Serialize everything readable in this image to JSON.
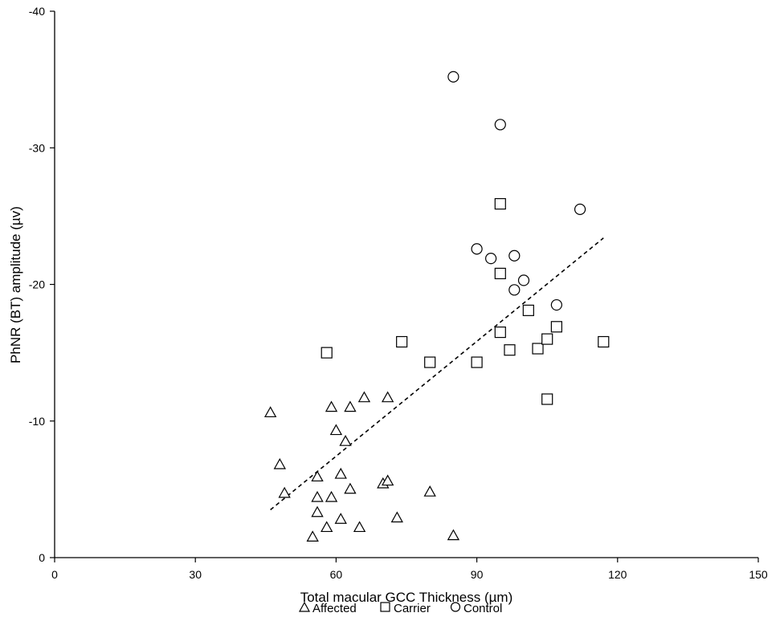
{
  "chart_data": {
    "type": "scatter",
    "xlabel": "Total macular GCC Thickness (µm)",
    "ylabel": "PhNR (BT) amplitude (µv)",
    "xlim": [
      0,
      150
    ],
    "ylim": [
      0,
      -40
    ],
    "y_axis_reversed": true,
    "x_ticks": [
      0,
      30,
      60,
      90,
      120,
      150
    ],
    "y_ticks": [
      0,
      -10,
      -20,
      -30,
      -40
    ],
    "grid": false,
    "legend_position": "bottom",
    "series": [
      {
        "name": "Affected",
        "marker": "triangle",
        "points": [
          [
            46,
            -10.6
          ],
          [
            48,
            -6.8
          ],
          [
            49,
            -4.7
          ],
          [
            55,
            -1.5
          ],
          [
            56,
            -5.9
          ],
          [
            56,
            -4.4
          ],
          [
            56,
            -3.3
          ],
          [
            58,
            -2.2
          ],
          [
            59,
            -11.0
          ],
          [
            59,
            -4.4
          ],
          [
            60,
            -9.3
          ],
          [
            61,
            -6.1
          ],
          [
            61,
            -2.8
          ],
          [
            62,
            -8.5
          ],
          [
            63,
            -11.0
          ],
          [
            63,
            -5.0
          ],
          [
            65,
            -2.2
          ],
          [
            66,
            -11.7
          ],
          [
            70,
            -5.4
          ],
          [
            71,
            -11.7
          ],
          [
            71,
            -5.6
          ],
          [
            73,
            -2.9
          ],
          [
            80,
            -4.8
          ],
          [
            85,
            -1.6
          ]
        ]
      },
      {
        "name": "Carrier",
        "marker": "square",
        "points": [
          [
            58,
            -15.0
          ],
          [
            74,
            -15.8
          ],
          [
            80,
            -14.3
          ],
          [
            90,
            -14.3
          ],
          [
            95,
            -25.9
          ],
          [
            95,
            -20.8
          ],
          [
            95,
            -16.5
          ],
          [
            97,
            -15.2
          ],
          [
            101,
            -18.1
          ],
          [
            103,
            -15.3
          ],
          [
            105,
            -16.0
          ],
          [
            105,
            -11.6
          ],
          [
            107,
            -16.9
          ],
          [
            117,
            -15.8
          ]
        ]
      },
      {
        "name": "Control",
        "marker": "circle",
        "points": [
          [
            85,
            -35.2
          ],
          [
            90,
            -22.6
          ],
          [
            93,
            -21.9
          ],
          [
            95,
            -31.7
          ],
          [
            98,
            -22.1
          ],
          [
            98,
            -19.6
          ],
          [
            100,
            -20.3
          ],
          [
            107,
            -18.5
          ],
          [
            112,
            -25.5
          ]
        ]
      }
    ],
    "trendline": {
      "style": "dashed",
      "from": [
        46,
        -3.5
      ],
      "to": [
        117,
        -23.4
      ]
    },
    "colors": {
      "marker_stroke": "#000000",
      "marker_fill": "#ffffff",
      "axis": "#000000"
    }
  }
}
